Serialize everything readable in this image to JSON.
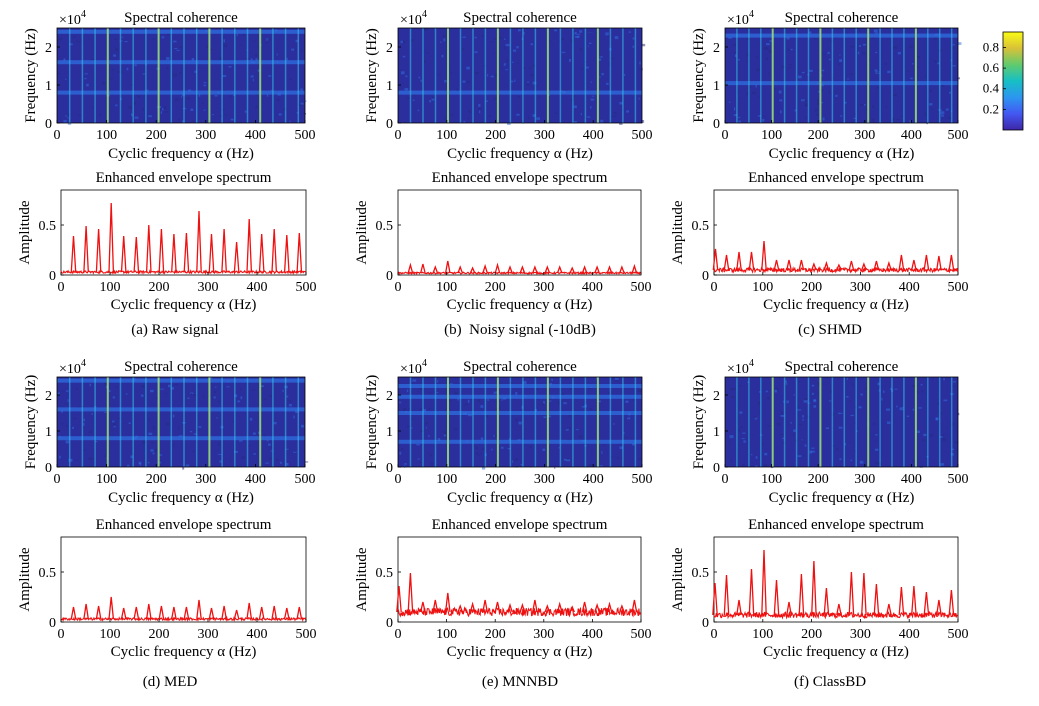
{
  "colors": {
    "spectrum_line": "#ee1111",
    "heatmap_background": "#2b2f9e",
    "heatmap_dark": "#23297f",
    "heatmap_mid": "#2f6fe0",
    "heatmap_bright": "#33c8e8",
    "heatmap_peak": "#9fe37a",
    "colorbar": [
      "#3e26a8",
      "#4358f2",
      "#2c96f0",
      "#16bfc4",
      "#61cb6d",
      "#d8c138",
      "#f9fb14"
    ]
  },
  "colorbar": {
    "ticks": [
      "0.8",
      "0.6",
      "0.4",
      "0.2"
    ],
    "tick_values": [
      0.8,
      0.6,
      0.4,
      0.2
    ],
    "range": [
      0.0,
      0.95
    ]
  },
  "panels": [
    {
      "caption": "(a) Raw signal",
      "coherence": {
        "type": "heatmap",
        "title": "Spectral coherence",
        "xlabel": "Cyclic frequency α (Hz)",
        "ylabel": "Frequency (Hz)",
        "exponent_label": "×10",
        "exponent_power": "4",
        "xticks": [
          "0",
          "100",
          "200",
          "300",
          "400",
          "500"
        ],
        "yticks": [
          "0",
          "1",
          "2"
        ],
        "xlim": [
          0,
          500
        ],
        "ylim": [
          0,
          2.5
        ],
        "vertical_line_spacing_hz": 25.6,
        "horizontal_bands_e4_hz": [
          0.8,
          1.6,
          2.4
        ]
      },
      "spectrum": {
        "type": "line",
        "title": "Enhanced envelope spectrum",
        "xlabel": "Cyclic frequency α (Hz)",
        "ylabel": "Amplitude",
        "xticks": [
          "0",
          "100",
          "200",
          "300",
          "400",
          "500"
        ],
        "yticks": [
          "0",
          "0.5"
        ],
        "xlim": [
          0,
          500
        ],
        "ylim": [
          0,
          0.85
        ],
        "baseline": 0.03,
        "peaks": [
          {
            "x": 25.6,
            "y": 0.39
          },
          {
            "x": 51.2,
            "y": 0.49
          },
          {
            "x": 76.8,
            "y": 0.46
          },
          {
            "x": 102.4,
            "y": 0.72
          },
          {
            "x": 128,
            "y": 0.39
          },
          {
            "x": 153.6,
            "y": 0.38
          },
          {
            "x": 179.2,
            "y": 0.5
          },
          {
            "x": 204.8,
            "y": 0.46
          },
          {
            "x": 230.4,
            "y": 0.41
          },
          {
            "x": 256,
            "y": 0.42
          },
          {
            "x": 281.6,
            "y": 0.64
          },
          {
            "x": 307.2,
            "y": 0.41
          },
          {
            "x": 332.8,
            "y": 0.46
          },
          {
            "x": 358.4,
            "y": 0.33
          },
          {
            "x": 384,
            "y": 0.56
          },
          {
            "x": 409.6,
            "y": 0.41
          },
          {
            "x": 435.2,
            "y": 0.46
          },
          {
            "x": 460.8,
            "y": 0.4
          },
          {
            "x": 486.4,
            "y": 0.42
          }
        ]
      }
    },
    {
      "caption": "(b)  Noisy signal (-10dB)",
      "coherence": {
        "type": "heatmap",
        "title": "Spectral coherence",
        "xlabel": "Cyclic frequency α (Hz)",
        "ylabel": "Frequency (Hz)",
        "exponent_label": "×10",
        "exponent_power": "4",
        "xticks": [
          "0",
          "100",
          "200",
          "300",
          "400",
          "500"
        ],
        "yticks": [
          "0",
          "1",
          "2"
        ],
        "xlim": [
          0,
          500
        ],
        "ylim": [
          0,
          2.5
        ],
        "vertical_line_spacing_hz": 25.6,
        "horizontal_bands_e4_hz": [
          0.8
        ]
      },
      "spectrum": {
        "type": "line",
        "title": "Enhanced envelope spectrum",
        "xlabel": "Cyclic frequency α (Hz)",
        "ylabel": "Amplitude",
        "xticks": [
          "0",
          "100",
          "200",
          "300",
          "400",
          "500"
        ],
        "yticks": [
          "0",
          "0.5"
        ],
        "xlim": [
          0,
          500
        ],
        "ylim": [
          0,
          0.85
        ],
        "baseline": 0.02,
        "peaks": [
          {
            "x": 25.6,
            "y": 0.1
          },
          {
            "x": 51.2,
            "y": 0.11
          },
          {
            "x": 76.8,
            "y": 0.08
          },
          {
            "x": 102.4,
            "y": 0.14
          },
          {
            "x": 128,
            "y": 0.08
          },
          {
            "x": 153.6,
            "y": 0.07
          },
          {
            "x": 179.2,
            "y": 0.09
          },
          {
            "x": 204.8,
            "y": 0.1
          },
          {
            "x": 230.4,
            "y": 0.08
          },
          {
            "x": 256,
            "y": 0.08
          },
          {
            "x": 281.6,
            "y": 0.08
          },
          {
            "x": 307.2,
            "y": 0.08
          },
          {
            "x": 332.8,
            "y": 0.08
          },
          {
            "x": 358.4,
            "y": 0.07
          },
          {
            "x": 384,
            "y": 0.08
          },
          {
            "x": 409.6,
            "y": 0.08
          },
          {
            "x": 435.2,
            "y": 0.08
          },
          {
            "x": 460.8,
            "y": 0.08
          },
          {
            "x": 486.4,
            "y": 0.09
          }
        ]
      }
    },
    {
      "caption": "(c) SHMD",
      "coherence": {
        "type": "heatmap",
        "title": "Spectral coherence",
        "xlabel": "Cyclic frequency α (Hz)",
        "ylabel": "Frequency (Hz)",
        "exponent_label": "×10",
        "exponent_power": "4",
        "xticks": [
          "0",
          "100",
          "200",
          "300",
          "400",
          "500"
        ],
        "yticks": [
          "0",
          "1",
          "2"
        ],
        "xlim": [
          0,
          500
        ],
        "ylim": [
          0,
          2.5
        ],
        "vertical_line_spacing_hz": 25.6,
        "horizontal_bands_e4_hz": [
          1.05,
          2.3
        ]
      },
      "spectrum": {
        "type": "line",
        "title": "Enhanced envelope spectrum",
        "xlabel": "Cyclic frequency α (Hz)",
        "ylabel": "Amplitude",
        "xticks": [
          "0",
          "100",
          "200",
          "300",
          "400",
          "500"
        ],
        "yticks": [
          "0",
          "0.5"
        ],
        "xlim": [
          0,
          500
        ],
        "ylim": [
          0,
          0.85
        ],
        "baseline": 0.05,
        "peaks": [
          {
            "x": 3,
            "y": 0.26
          },
          {
            "x": 25.6,
            "y": 0.2
          },
          {
            "x": 51.2,
            "y": 0.23
          },
          {
            "x": 76.8,
            "y": 0.23
          },
          {
            "x": 102.4,
            "y": 0.34
          },
          {
            "x": 128,
            "y": 0.15
          },
          {
            "x": 153.6,
            "y": 0.15
          },
          {
            "x": 179.2,
            "y": 0.15
          },
          {
            "x": 204.8,
            "y": 0.11
          },
          {
            "x": 230.4,
            "y": 0.12
          },
          {
            "x": 256,
            "y": 0.1
          },
          {
            "x": 281.6,
            "y": 0.14
          },
          {
            "x": 307.2,
            "y": 0.11
          },
          {
            "x": 332.8,
            "y": 0.14
          },
          {
            "x": 358.4,
            "y": 0.12
          },
          {
            "x": 384,
            "y": 0.2
          },
          {
            "x": 409.6,
            "y": 0.15
          },
          {
            "x": 435.2,
            "y": 0.2
          },
          {
            "x": 460.8,
            "y": 0.19
          },
          {
            "x": 486.4,
            "y": 0.2
          }
        ]
      }
    },
    {
      "caption": "(d) MED",
      "coherence": {
        "type": "heatmap",
        "title": "Spectral coherence",
        "xlabel": "Cyclic frequency α (Hz)",
        "ylabel": "Frequency (Hz)",
        "exponent_label": "×10",
        "exponent_power": "4",
        "xticks": [
          "0",
          "100",
          "200",
          "300",
          "400",
          "500"
        ],
        "yticks": [
          "0",
          "1",
          "2"
        ],
        "xlim": [
          0,
          500
        ],
        "ylim": [
          0,
          2.5
        ],
        "vertical_line_spacing_hz": 25.6,
        "horizontal_bands_e4_hz": [
          0.8,
          1.6,
          2.4
        ]
      },
      "spectrum": {
        "type": "line",
        "title": "Enhanced envelope spectrum",
        "xlabel": "Cyclic frequency α (Hz)",
        "ylabel": "Amplitude",
        "xticks": [
          "0",
          "100",
          "200",
          "300",
          "400",
          "500"
        ],
        "yticks": [
          "0",
          "0.5"
        ],
        "xlim": [
          0,
          500
        ],
        "ylim": [
          0,
          0.85
        ],
        "baseline": 0.03,
        "peaks": [
          {
            "x": 25.6,
            "y": 0.15
          },
          {
            "x": 51.2,
            "y": 0.18
          },
          {
            "x": 76.8,
            "y": 0.16
          },
          {
            "x": 102.4,
            "y": 0.25
          },
          {
            "x": 128,
            "y": 0.14
          },
          {
            "x": 153.6,
            "y": 0.15
          },
          {
            "x": 179.2,
            "y": 0.18
          },
          {
            "x": 204.8,
            "y": 0.16
          },
          {
            "x": 230.4,
            "y": 0.15
          },
          {
            "x": 256,
            "y": 0.15
          },
          {
            "x": 281.6,
            "y": 0.22
          },
          {
            "x": 307.2,
            "y": 0.14
          },
          {
            "x": 332.8,
            "y": 0.16
          },
          {
            "x": 358.4,
            "y": 0.12
          },
          {
            "x": 384,
            "y": 0.19
          },
          {
            "x": 409.6,
            "y": 0.15
          },
          {
            "x": 435.2,
            "y": 0.16
          },
          {
            "x": 460.8,
            "y": 0.14
          },
          {
            "x": 486.4,
            "y": 0.15
          }
        ]
      }
    },
    {
      "caption": "(e) MNNBD",
      "coherence": {
        "type": "heatmap",
        "title": "Spectral coherence",
        "xlabel": "Cyclic frequency α (Hz)",
        "ylabel": "Frequency (Hz)",
        "exponent_label": "×10",
        "exponent_power": "4",
        "xticks": [
          "0",
          "100",
          "200",
          "300",
          "400",
          "500"
        ],
        "yticks": [
          "0",
          "1",
          "2"
        ],
        "xlim": [
          0,
          500
        ],
        "ylim": [
          0,
          2.5
        ],
        "vertical_line_spacing_hz": 25.6,
        "horizontal_bands_e4_hz": [
          0.7,
          1.5,
          1.95,
          2.25
        ]
      },
      "spectrum": {
        "type": "line",
        "title": "Enhanced envelope spectrum",
        "xlabel": "Cyclic frequency α (Hz)",
        "ylabel": "Amplitude",
        "xticks": [
          "0",
          "100",
          "200",
          "300",
          "400",
          "500"
        ],
        "yticks": [
          "0",
          "0.5"
        ],
        "xlim": [
          0,
          500
        ],
        "ylim": [
          0,
          0.85
        ],
        "baseline": 0.1,
        "peaks": [
          {
            "x": 2,
            "y": 0.36
          },
          {
            "x": 25.6,
            "y": 0.49
          },
          {
            "x": 51.2,
            "y": 0.2
          },
          {
            "x": 76.8,
            "y": 0.22
          },
          {
            "x": 102.4,
            "y": 0.29
          },
          {
            "x": 128,
            "y": 0.16
          },
          {
            "x": 153.6,
            "y": 0.18
          },
          {
            "x": 179.2,
            "y": 0.22
          },
          {
            "x": 204.8,
            "y": 0.2
          },
          {
            "x": 230.4,
            "y": 0.17
          },
          {
            "x": 256,
            "y": 0.17
          },
          {
            "x": 281.6,
            "y": 0.22
          },
          {
            "x": 307.2,
            "y": 0.16
          },
          {
            "x": 332.8,
            "y": 0.18
          },
          {
            "x": 358.4,
            "y": 0.15
          },
          {
            "x": 384,
            "y": 0.2
          },
          {
            "x": 409.6,
            "y": 0.17
          },
          {
            "x": 435.2,
            "y": 0.18
          },
          {
            "x": 460.8,
            "y": 0.16
          },
          {
            "x": 486.4,
            "y": 0.22
          }
        ]
      }
    },
    {
      "caption": "(f) ClassBD",
      "coherence": {
        "type": "heatmap",
        "title": "Spectral coherence",
        "xlabel": "Cyclic frequency α (Hz)",
        "ylabel": "Frequency (Hz)",
        "exponent_label": "×10",
        "exponent_power": "4",
        "xticks": [
          "0",
          "100",
          "200",
          "300",
          "400",
          "500"
        ],
        "yticks": [
          "0",
          "1",
          "2"
        ],
        "xlim": [
          0,
          500
        ],
        "ylim": [
          0,
          2.5
        ],
        "vertical_line_spacing_hz": 25.6,
        "horizontal_bands_e4_hz": []
      },
      "spectrum": {
        "type": "line",
        "title": "Enhanced envelope spectrum",
        "xlabel": "Cyclic frequency α (Hz)",
        "ylabel": "Amplitude",
        "xticks": [
          "0",
          "100",
          "200",
          "300",
          "400",
          "500"
        ],
        "yticks": [
          "0",
          "0.5"
        ],
        "xlim": [
          0,
          500
        ],
        "ylim": [
          0,
          0.85
        ],
        "baseline": 0.07,
        "peaks": [
          {
            "x": 2,
            "y": 0.39
          },
          {
            "x": 25.6,
            "y": 0.47
          },
          {
            "x": 51.2,
            "y": 0.22
          },
          {
            "x": 76.8,
            "y": 0.53
          },
          {
            "x": 102.4,
            "y": 0.72
          },
          {
            "x": 128,
            "y": 0.42
          },
          {
            "x": 153.6,
            "y": 0.2
          },
          {
            "x": 179.2,
            "y": 0.48
          },
          {
            "x": 204.8,
            "y": 0.61
          },
          {
            "x": 230.4,
            "y": 0.34
          },
          {
            "x": 256,
            "y": 0.18
          },
          {
            "x": 281.6,
            "y": 0.5
          },
          {
            "x": 307.2,
            "y": 0.49
          },
          {
            "x": 332.8,
            "y": 0.38
          },
          {
            "x": 358.4,
            "y": 0.18
          },
          {
            "x": 384,
            "y": 0.35
          },
          {
            "x": 409.6,
            "y": 0.36
          },
          {
            "x": 435.2,
            "y": 0.3
          },
          {
            "x": 460.8,
            "y": 0.22
          },
          {
            "x": 486.4,
            "y": 0.32
          }
        ]
      }
    }
  ]
}
